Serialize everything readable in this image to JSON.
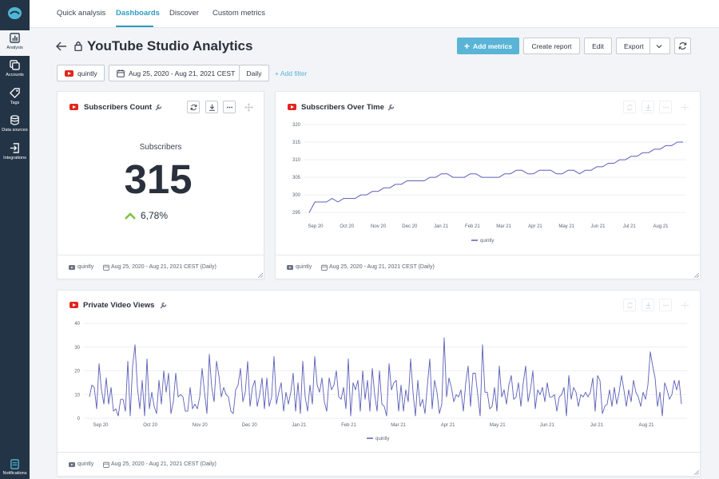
{
  "sidebar": {
    "items": [
      {
        "label": "Analysis",
        "icon": "bar-chart-icon",
        "active": true
      },
      {
        "label": "Accounts",
        "icon": "accounts-icon",
        "active": false
      },
      {
        "label": "Tags",
        "icon": "tag-icon",
        "active": false
      },
      {
        "label": "Data sources",
        "icon": "database-icon",
        "active": false
      },
      {
        "label": "Integrations",
        "icon": "integrations-icon",
        "active": false
      }
    ],
    "notifications_label": "Notifications"
  },
  "topnav": {
    "tabs": [
      {
        "label": "Quick analysis",
        "active": false
      },
      {
        "label": "Dashboards",
        "active": true
      },
      {
        "label": "Discover",
        "active": false
      },
      {
        "label": "Custom metrics",
        "active": false
      }
    ]
  },
  "header": {
    "title": "YouTube Studio Analytics",
    "add_metrics_label": "Add metrics",
    "create_report_label": "Create report",
    "edit_label": "Edit",
    "export_label": "Export"
  },
  "filters": {
    "account": "quintly",
    "date_range": "Aug 25, 2020 - Aug 21, 2021 CEST",
    "interval": "Daily",
    "add_filter_label": "+ Add filter"
  },
  "widgets": {
    "subscribers_count": {
      "title": "Subscribers Count",
      "label": "Subscribers",
      "value": "315",
      "change": "6,78%",
      "change_direction": "up",
      "footer_account": "quintly",
      "footer_range": "Aug 25, 2020 - Aug 21, 2021 CEST  (Daily)"
    },
    "subscribers_over_time": {
      "title": "Subscribers Over Time",
      "footer_account": "quintly",
      "footer_range": "Aug 25, 2020 - Aug 21, 2021 CEST  (Daily)"
    },
    "private_video_views": {
      "title": "Private Video Views",
      "footer_account": "quintly",
      "footer_range": "Aug 25, 2020 - Aug 21, 2021 CEST  (Daily)"
    }
  },
  "colors": {
    "accent": "#5ab4d6",
    "line": "#5b5fb8",
    "positive": "#7ac142",
    "youtube": "#e0261d",
    "sidebar": "#243447"
  },
  "chart_data": [
    {
      "type": "line",
      "chart": "subscribers_over_time",
      "x_tick_labels": [
        "Sep 20",
        "Oct 20",
        "Nov 20",
        "Dec 20",
        "Jan 21",
        "Feb 21",
        "Mar 21",
        "Apr 21",
        "May 21",
        "Jun 21",
        "Jul 21",
        "Aug 21"
      ],
      "y_ticks": [
        295,
        300,
        305,
        310,
        315,
        320
      ],
      "ylim": [
        293,
        320
      ],
      "grid": true,
      "legend": "bottom-center",
      "series": [
        {
          "name": "quintly",
          "values": [
            295,
            298,
            298,
            298,
            299,
            298,
            299,
            299,
            299,
            300,
            300,
            301,
            301,
            302,
            302,
            303,
            303,
            304,
            304,
            304,
            304,
            305,
            305,
            306,
            306,
            305,
            305,
            305,
            306,
            306,
            305,
            305,
            305,
            305,
            306,
            306,
            307,
            307,
            306,
            306,
            307,
            307,
            307,
            306,
            306,
            307,
            307,
            306,
            307,
            307,
            308,
            308,
            309,
            309,
            310,
            310,
            311,
            311,
            312,
            312,
            313,
            313,
            314,
            314,
            315,
            315
          ]
        }
      ]
    },
    {
      "type": "line",
      "chart": "private_video_views",
      "x_tick_labels": [
        "Sep 20",
        "Oct 20",
        "Nov 20",
        "Dec 20",
        "Jan 21",
        "Feb 21",
        "Mar 21",
        "Apr 21",
        "May 21",
        "Jun 21",
        "Jul 21",
        "Aug 21"
      ],
      "y_ticks": [
        0,
        10,
        20,
        30,
        40
      ],
      "ylim": [
        0,
        40
      ],
      "grid": true,
      "legend": "bottom-center",
      "series": [
        {
          "name": "quintly",
          "values": [
            9,
            14,
            13,
            4,
            23,
            12,
            6,
            17,
            6,
            13,
            3,
            4,
            1,
            8,
            8,
            3,
            24,
            1,
            22,
            31,
            13,
            4,
            16,
            1,
            25,
            4,
            11,
            5,
            2,
            16,
            6,
            20,
            11,
            19,
            2,
            7,
            19,
            9,
            10,
            9,
            3,
            3,
            13,
            4,
            6,
            4,
            9,
            21,
            11,
            2,
            27,
            13,
            7,
            24,
            18,
            9,
            13,
            10,
            9,
            3,
            2,
            12,
            14,
            21,
            7,
            11,
            24,
            5,
            13,
            16,
            5,
            10,
            17,
            4,
            17,
            5,
            9,
            26,
            6,
            11,
            15,
            3,
            11,
            6,
            11,
            19,
            3,
            15,
            2,
            24,
            9,
            3,
            14,
            6,
            26,
            14,
            11,
            17,
            7,
            3,
            17,
            12,
            14,
            20,
            9,
            8,
            13,
            4,
            25,
            1,
            15,
            12,
            16,
            3,
            20,
            8,
            16,
            3,
            21,
            10,
            3,
            20,
            6,
            5,
            1,
            23,
            12,
            15,
            16,
            3,
            14,
            3,
            12,
            7,
            25,
            11,
            1,
            16,
            5,
            8,
            2,
            14,
            25,
            4,
            16,
            11,
            2,
            6,
            34,
            9,
            17,
            13,
            7,
            10,
            9,
            12,
            3,
            15,
            22,
            5,
            19,
            19,
            10,
            1,
            31,
            11,
            11,
            4,
            5,
            13,
            3,
            22,
            9,
            12,
            6,
            14,
            18,
            8,
            9,
            15,
            5,
            15,
            22,
            7,
            12,
            20,
            4,
            12,
            10,
            13,
            7,
            15,
            9,
            9,
            10,
            3,
            9,
            10,
            13,
            1,
            18,
            8,
            13,
            11,
            5,
            10,
            9,
            11,
            9,
            11,
            17,
            3,
            18,
            16,
            2,
            5,
            6,
            12,
            5,
            13,
            6,
            11,
            18,
            12,
            5,
            12,
            7,
            16,
            11,
            9,
            5,
            11,
            8,
            14,
            28,
            22,
            17,
            5,
            11,
            1,
            15,
            12,
            8,
            10,
            16,
            12,
            16,
            6
          ]
        }
      ]
    }
  ]
}
